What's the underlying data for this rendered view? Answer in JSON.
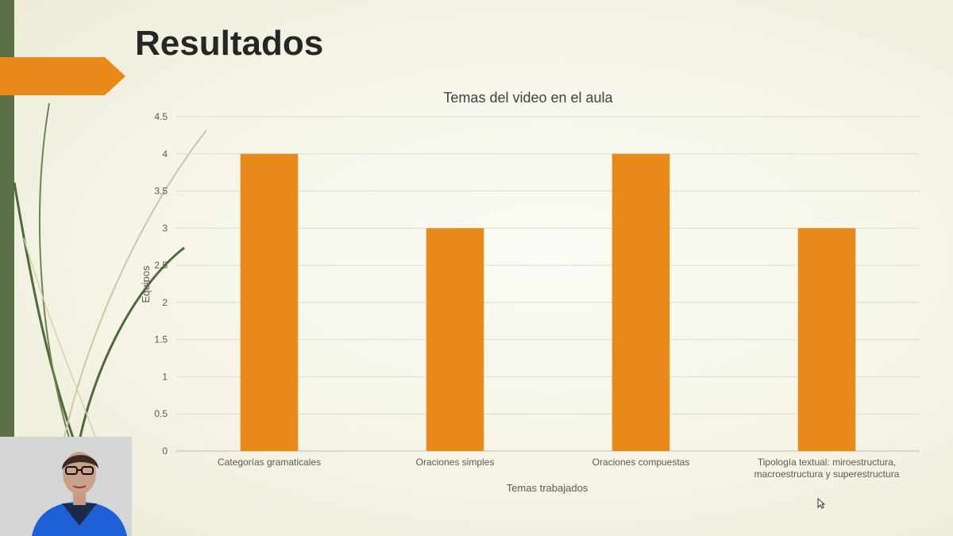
{
  "slide": {
    "title": "Resultados",
    "accent_color": "#e8891a",
    "sidebar_color": "#5e7047"
  },
  "chart_data": {
    "type": "bar",
    "title": "Temas del video en el aula",
    "xlabel": "Temas trabajados",
    "ylabel": "Equipos",
    "categories": [
      [
        "Categorías gramaticales"
      ],
      [
        "Oraciones simples"
      ],
      [
        "Oraciones compuestas"
      ],
      [
        "Tipología textual: miroestructura,",
        "macroestructura y superestructura"
      ]
    ],
    "values": [
      4,
      3,
      4,
      3
    ],
    "ylim": [
      0,
      4.5
    ],
    "yticks": [
      "0",
      "0.5",
      "1",
      "1.5",
      "2",
      "2.5",
      "3",
      "3.5",
      "4",
      "4.5"
    ],
    "grid": true,
    "bar_color": "#e8891a"
  },
  "webcam": {
    "icon": "person-video-feed"
  }
}
